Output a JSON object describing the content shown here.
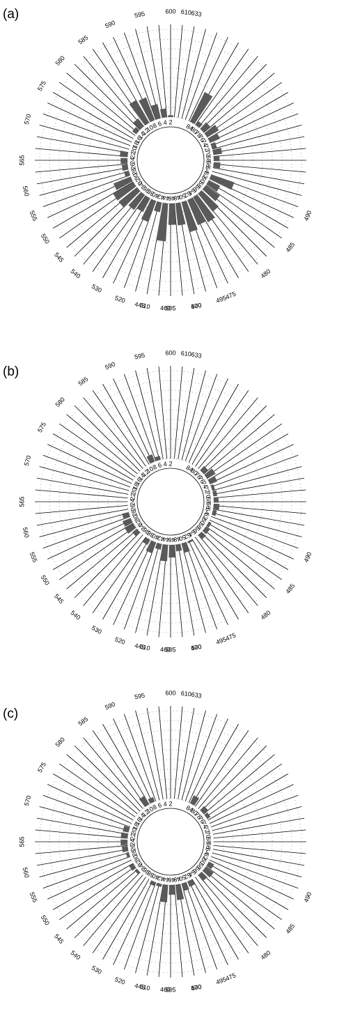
{
  "panel_labels": [
    "(a)",
    "(b)",
    "(c)"
  ],
  "chart_data": {
    "type": "bar",
    "layout": "circular",
    "positions": [
      "2",
      "4",
      "6",
      "8",
      "10",
      "12",
      "14",
      "16",
      "18",
      "20",
      "22",
      "24",
      "26",
      "28",
      "30",
      "32",
      "34",
      "36",
      "38",
      "40",
      "42",
      "44",
      "46",
      "48",
      "50",
      "52",
      "54",
      "56",
      "58",
      "60",
      "62",
      "64",
      "66",
      "68",
      "70",
      "72",
      "74",
      "76",
      "78",
      "80",
      "84"
    ],
    "wavelengths_nm": [
      "600",
      "595",
      "590",
      "585",
      "580",
      "575",
      "570",
      "565",
      "560",
      "555",
      "550",
      "545",
      "540",
      "530",
      "520",
      "510",
      "505",
      "500",
      "495",
      "490",
      "485",
      "480",
      "475",
      "470",
      "460",
      "445",
      "633",
      "610"
    ],
    "bar_color": "#5a5a5a",
    "panels": [
      {
        "label": "(a)",
        "values": [
          0.2,
          0.9,
          1.5,
          2.5,
          2.7,
          1.0,
          0.5,
          0,
          0,
          0,
          0.8,
          0.7,
          0.6,
          0.5,
          1.9,
          2.4,
          2.4,
          1.9,
          1.6,
          2.3,
          1.0,
          3.9,
          2.2,
          2.3,
          3.2,
          2.8,
          3.0,
          2.4,
          1.8,
          1.3,
          2.5,
          0,
          0.7,
          0.6,
          0.9,
          0.5,
          1.1,
          1.4,
          0.9,
          0.5,
          3.4
        ]
      },
      {
        "label": "(b)",
        "values": [
          0,
          0,
          0.4,
          0.8,
          0,
          0,
          0,
          0,
          0,
          0,
          0,
          0,
          0,
          0.7,
          0.9,
          1.0,
          0.6,
          0,
          0.6,
          1.2,
          0.6,
          1.7,
          1.3,
          0.7,
          1.0,
          0.2,
          0,
          0.6,
          0.5,
          0.3,
          0,
          0.4,
          0.6,
          0.5,
          0.4,
          0.3,
          0.8,
          1.0,
          0.6,
          0,
          0
        ]
      },
      {
        "label": "(c)",
        "values": [
          0,
          0,
          0,
          0.5,
          1.0,
          0,
          0,
          0,
          0,
          0.6,
          0.7,
          0.7,
          0.6,
          0.3,
          0,
          0.5,
          0.3,
          0,
          0,
          0.4,
          0.3,
          1.8,
          1.0,
          1.6,
          0.8,
          0.6,
          0,
          0.8,
          1.0,
          0.6,
          0,
          0,
          0,
          0,
          0,
          0,
          0,
          0.4,
          0.6,
          0,
          0.9
        ]
      }
    ]
  }
}
